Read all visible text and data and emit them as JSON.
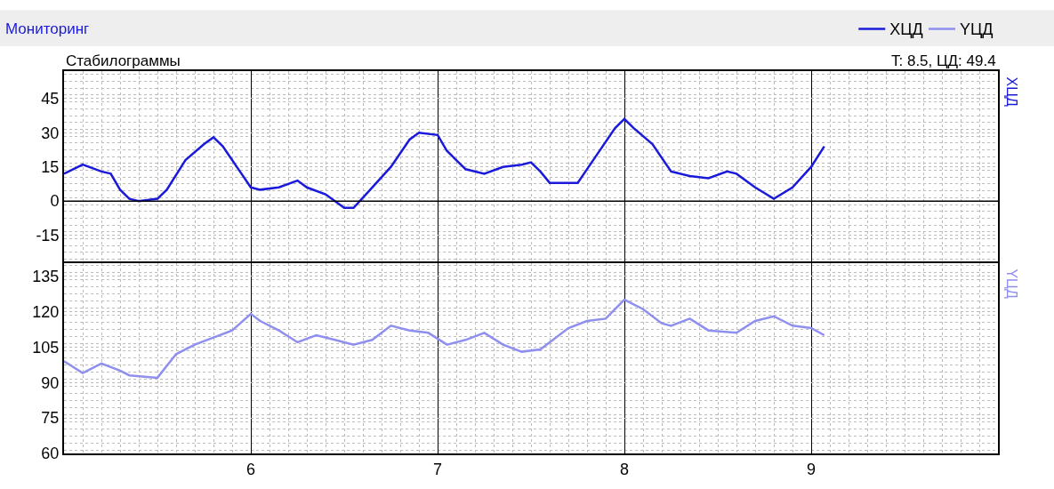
{
  "chart_data": [
    {
      "type": "line",
      "title": "Стабилограммы",
      "annotations": [
        "Мониторинг",
        "T: 8.5, ЦД: 49.4"
      ],
      "legend": "top right",
      "grid": true,
      "tick_labels": "y",
      "xlim": [
        5,
        10
      ],
      "xticks": [
        6,
        7,
        8,
        9
      ],
      "ylim": [
        -26.5,
        57
      ],
      "yticks": [
        -15,
        0,
        15,
        30,
        45
      ],
      "ref_lines": [
        {
          "axis": "y",
          "value": 0,
          "color": "#000000"
        }
      ],
      "x": [
        5.0,
        5.1,
        5.2,
        5.25,
        5.3,
        5.35,
        5.4,
        5.5,
        5.55,
        5.65,
        5.75,
        5.8,
        5.85,
        5.95,
        6.0,
        6.05,
        6.15,
        6.25,
        6.3,
        6.4,
        6.5,
        6.55,
        6.65,
        6.75,
        6.85,
        6.9,
        7.0,
        7.05,
        7.15,
        7.25,
        7.35,
        7.45,
        7.5,
        7.55,
        7.6,
        7.75,
        7.85,
        7.95,
        8.0,
        8.05,
        8.15,
        8.25,
        8.35,
        8.45,
        8.55,
        8.6,
        8.7,
        8.8,
        8.9,
        9.0,
        9.07
      ],
      "series": [
        {
          "name": "XЦД",
          "color": "#1a1adb",
          "values": [
            12,
            16,
            13,
            12,
            5,
            1,
            0,
            1,
            5,
            18,
            25,
            28,
            24,
            12,
            6,
            5,
            6,
            9,
            6,
            3,
            -3,
            -3,
            6,
            15,
            27,
            30,
            29,
            22,
            14,
            12,
            15,
            16,
            17,
            13,
            8,
            8,
            20,
            32,
            36,
            32,
            25,
            13,
            11,
            10,
            13,
            12,
            6,
            1,
            6,
            15,
            24
          ]
        }
      ]
    },
    {
      "type": "line",
      "legend": "top right",
      "grid": true,
      "xlim": [
        5,
        10
      ],
      "xticks": [
        6,
        7,
        8,
        9
      ],
      "ylim": [
        60,
        140.5
      ],
      "yticks": [
        60,
        75,
        90,
        105,
        120,
        135
      ],
      "x": [
        5.0,
        5.1,
        5.2,
        5.3,
        5.35,
        5.5,
        5.6,
        5.7,
        5.8,
        5.9,
        6.0,
        6.05,
        6.15,
        6.25,
        6.35,
        6.45,
        6.55,
        6.65,
        6.75,
        6.85,
        6.95,
        7.05,
        7.15,
        7.25,
        7.35,
        7.45,
        7.55,
        7.7,
        7.8,
        7.9,
        8.0,
        8.1,
        8.2,
        8.25,
        8.35,
        8.45,
        8.6,
        8.7,
        8.8,
        8.9,
        9.0,
        9.07
      ],
      "series": [
        {
          "name": "YЦД",
          "color": "#8f8ff0",
          "values": [
            99,
            94,
            98,
            95,
            93,
            92,
            102,
            106,
            109,
            112,
            119,
            116,
            112,
            107,
            110,
            108,
            106,
            108,
            114,
            112,
            111,
            106,
            108,
            111,
            106,
            103,
            104,
            113,
            116,
            117,
            125,
            121,
            115,
            114,
            117,
            112,
            111,
            116,
            118,
            114,
            113,
            110
          ]
        }
      ]
    }
  ]
}
